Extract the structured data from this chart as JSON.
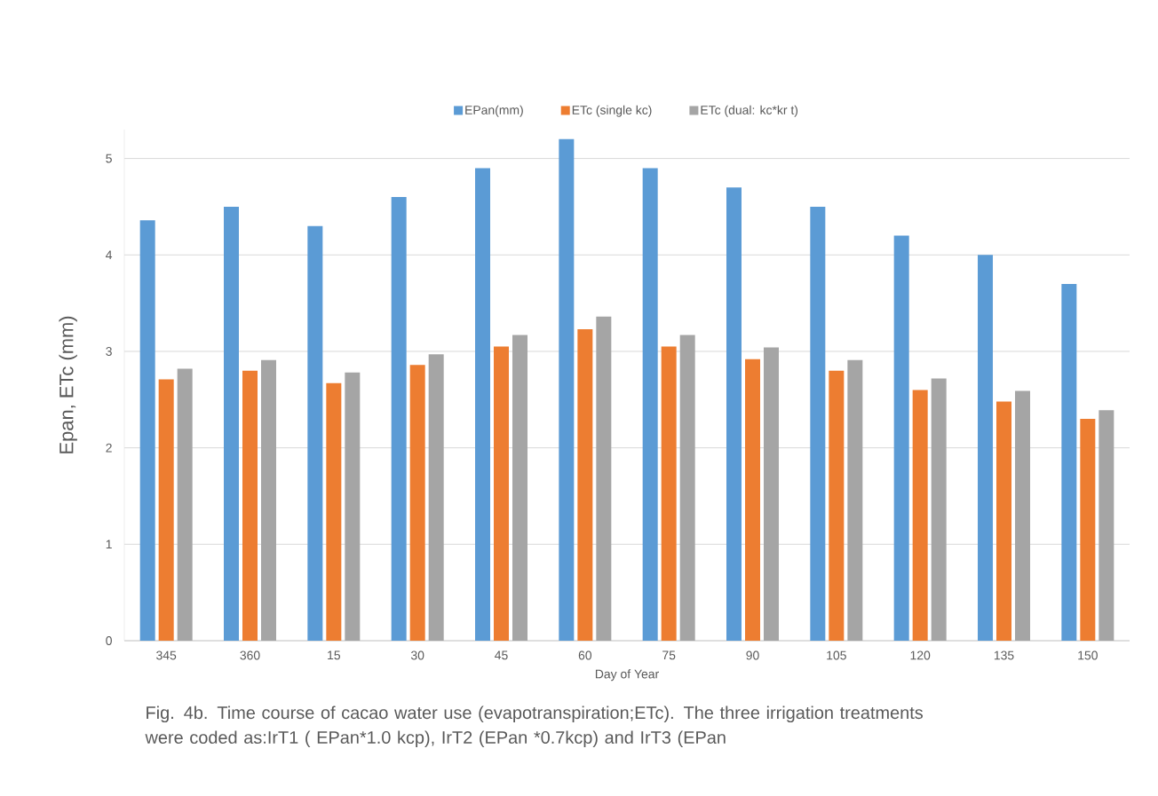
{
  "chart_data": {
    "type": "bar",
    "xlabel": "Day of Year",
    "ylabel": "Epan, ETc (mm)",
    "categories": [
      "345",
      "360",
      "15",
      "30",
      "45",
      "60",
      "75",
      "90",
      "105",
      "120",
      "135",
      "150"
    ],
    "series": [
      {
        "name": "EPan(mm)",
        "color": "#5b9bd5",
        "values": [
          4.36,
          4.5,
          4.3,
          4.6,
          4.9,
          5.2,
          4.9,
          4.7,
          4.5,
          4.2,
          4.0,
          3.7
        ]
      },
      {
        "name": "ETc (single kc)",
        "color": "#ed7d31",
        "values": [
          2.71,
          2.8,
          2.67,
          2.86,
          3.05,
          3.23,
          3.05,
          2.92,
          2.8,
          2.6,
          2.48,
          2.3
        ]
      },
      {
        "name": "ETc (dual: kc*kr t)",
        "color": "#a5a5a5",
        "values": [
          2.82,
          2.91,
          2.78,
          2.97,
          3.17,
          3.36,
          3.17,
          3.04,
          2.91,
          2.72,
          2.59,
          2.39
        ]
      }
    ],
    "ylim": [
      0,
      5.3
    ],
    "yticks": [
      0,
      1,
      2,
      3,
      4,
      5
    ],
    "grid": "y",
    "legend": "top",
    "annotations": [
      "Fig. 4b. Time course of cacao water use (evapotranspiration;ETc). The three irrigation treatments were coded as:IrT1 ( EPan*1.0 kcp), IrT2 (EPan *0.7kcp) and IrT3 (EPan"
    ]
  }
}
